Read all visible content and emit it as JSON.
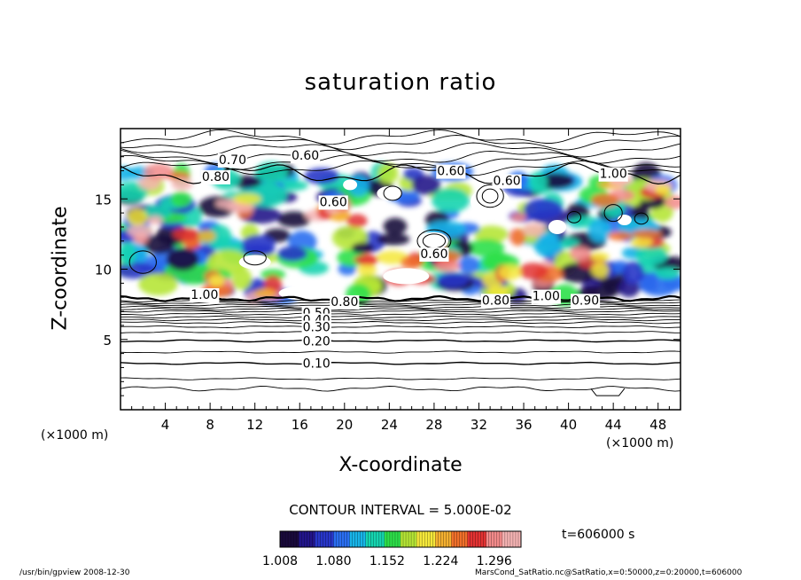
{
  "chart_data": {
    "type": "heatmap",
    "title": "saturation ratio",
    "xlabel": "X-coordinate",
    "ylabel": "Z-coordinate",
    "x_unit_left": "(×1000 m)",
    "x_unit_right": "(×1000 m)",
    "xlim": [
      0,
      50
    ],
    "ylim": [
      0,
      20
    ],
    "x_ticks": [
      4,
      8,
      12,
      16,
      20,
      24,
      28,
      32,
      36,
      40,
      44,
      48
    ],
    "y_ticks": [
      5,
      10,
      15
    ],
    "contour_interval_text": "CONTOUR INTERVAL = 5.000E-02",
    "time_text": "t=606000 s",
    "colorbar": {
      "min": 1.008,
      "max": 1.332,
      "labels": [
        "1.008",
        "1.080",
        "1.152",
        "1.224",
        "1.296"
      ],
      "colors": [
        "#1a0a3c",
        "#22158a",
        "#2836c8",
        "#2a6ef0",
        "#18b4e8",
        "#16d4b0",
        "#2ee04a",
        "#b6e636",
        "#f5e83a",
        "#f4b030",
        "#f0702a",
        "#e23232",
        "#f28a8a",
        "#f6b4b4"
      ]
    },
    "contour_labels": [
      {
        "text": "0.70",
        "x": 10,
        "z": 17.8
      },
      {
        "text": "0.60",
        "x": 16.5,
        "z": 18.1
      },
      {
        "text": "0.60",
        "x": 29.5,
        "z": 17.0
      },
      {
        "text": "0.80",
        "x": 8.5,
        "z": 16.6
      },
      {
        "text": "0.60",
        "x": 34.5,
        "z": 16.3
      },
      {
        "text": "1.00",
        "x": 44,
        "z": 16.8
      },
      {
        "text": "0.60",
        "x": 19,
        "z": 14.8
      },
      {
        "text": "0.60",
        "x": 28,
        "z": 11.1
      },
      {
        "text": "1.00",
        "x": 7.5,
        "z": 8.2
      },
      {
        "text": "0.80",
        "x": 20,
        "z": 7.7
      },
      {
        "text": "0.50",
        "x": 17.5,
        "z": 6.9
      },
      {
        "text": "0.40",
        "x": 17.5,
        "z": 6.4
      },
      {
        "text": "0.30",
        "x": 17.5,
        "z": 5.9
      },
      {
        "text": "0.20",
        "x": 17.5,
        "z": 4.9
      },
      {
        "text": "0.10",
        "x": 17.5,
        "z": 3.3
      },
      {
        "text": "1.00",
        "x": 38,
        "z": 8.1
      },
      {
        "text": "0.80",
        "x": 33.5,
        "z": 7.8
      },
      {
        "text": "0.90",
        "x": 41.5,
        "z": 7.8
      }
    ],
    "grid": false,
    "legend": "bottom-center colorbar"
  },
  "footer": {
    "left": "/usr/bin/gpview   2008-12-30",
    "right": "MarsCond_SatRatio.nc@SatRatio,x=0:50000,z=0:20000,t=606000"
  }
}
